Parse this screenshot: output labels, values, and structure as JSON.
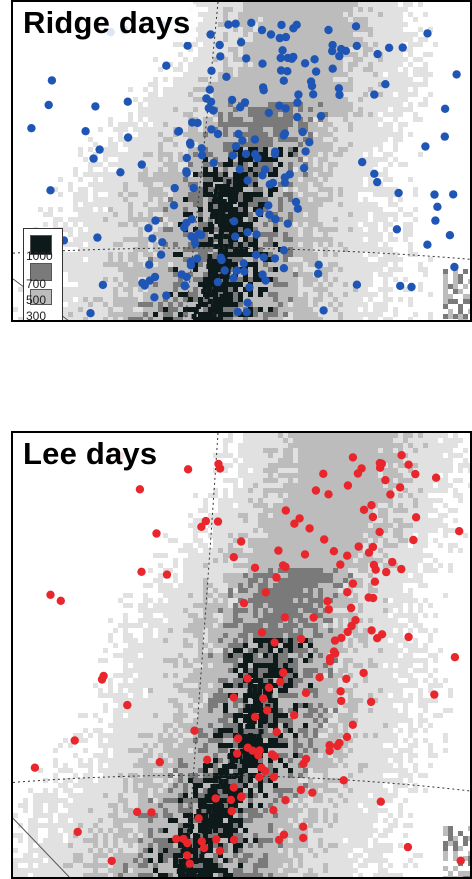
{
  "panels": [
    {
      "id": "ridge",
      "title": "Ridge days",
      "dot_color": "#1f56b6"
    },
    {
      "id": "lee",
      "title": "Lee days",
      "dot_color": "#e8262c"
    }
  ],
  "legend": {
    "labels": [
      "1000",
      "700",
      "500",
      "300"
    ],
    "colors": [
      "#0e1a1a",
      "#7a7a7a",
      "#bcbcbc",
      "#e1e1e1"
    ]
  }
}
